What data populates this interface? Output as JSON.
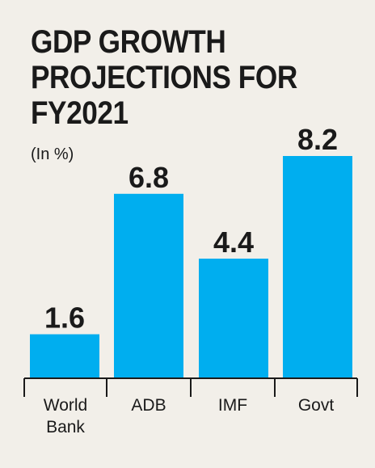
{
  "chart_data": {
    "type": "bar",
    "title_lines": [
      "GDP GROWTH",
      "PROJECTIONS FOR",
      "FY2021"
    ],
    "subtitle": "(In %)",
    "categories": [
      [
        "World",
        "Bank"
      ],
      [
        "ADB"
      ],
      [
        "IMF"
      ],
      [
        "Govt"
      ]
    ],
    "values": [
      1.6,
      6.8,
      4.4,
      8.2
    ],
    "value_labels": [
      "1.6",
      "6.8",
      "4.4",
      "8.2"
    ],
    "ylim": [
      0,
      8.2
    ],
    "grid": false,
    "bar_color": "#00aeef",
    "axis_color": "#1a1a1a"
  }
}
